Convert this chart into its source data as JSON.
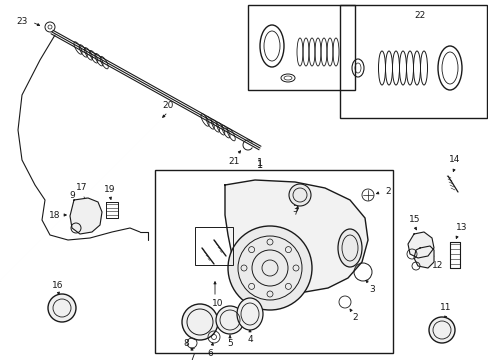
{
  "bg_color": "#ffffff",
  "line_color": "#1a1a1a",
  "fig_width": 4.89,
  "fig_height": 3.6,
  "dpi": 100,
  "lfs": 6.5
}
